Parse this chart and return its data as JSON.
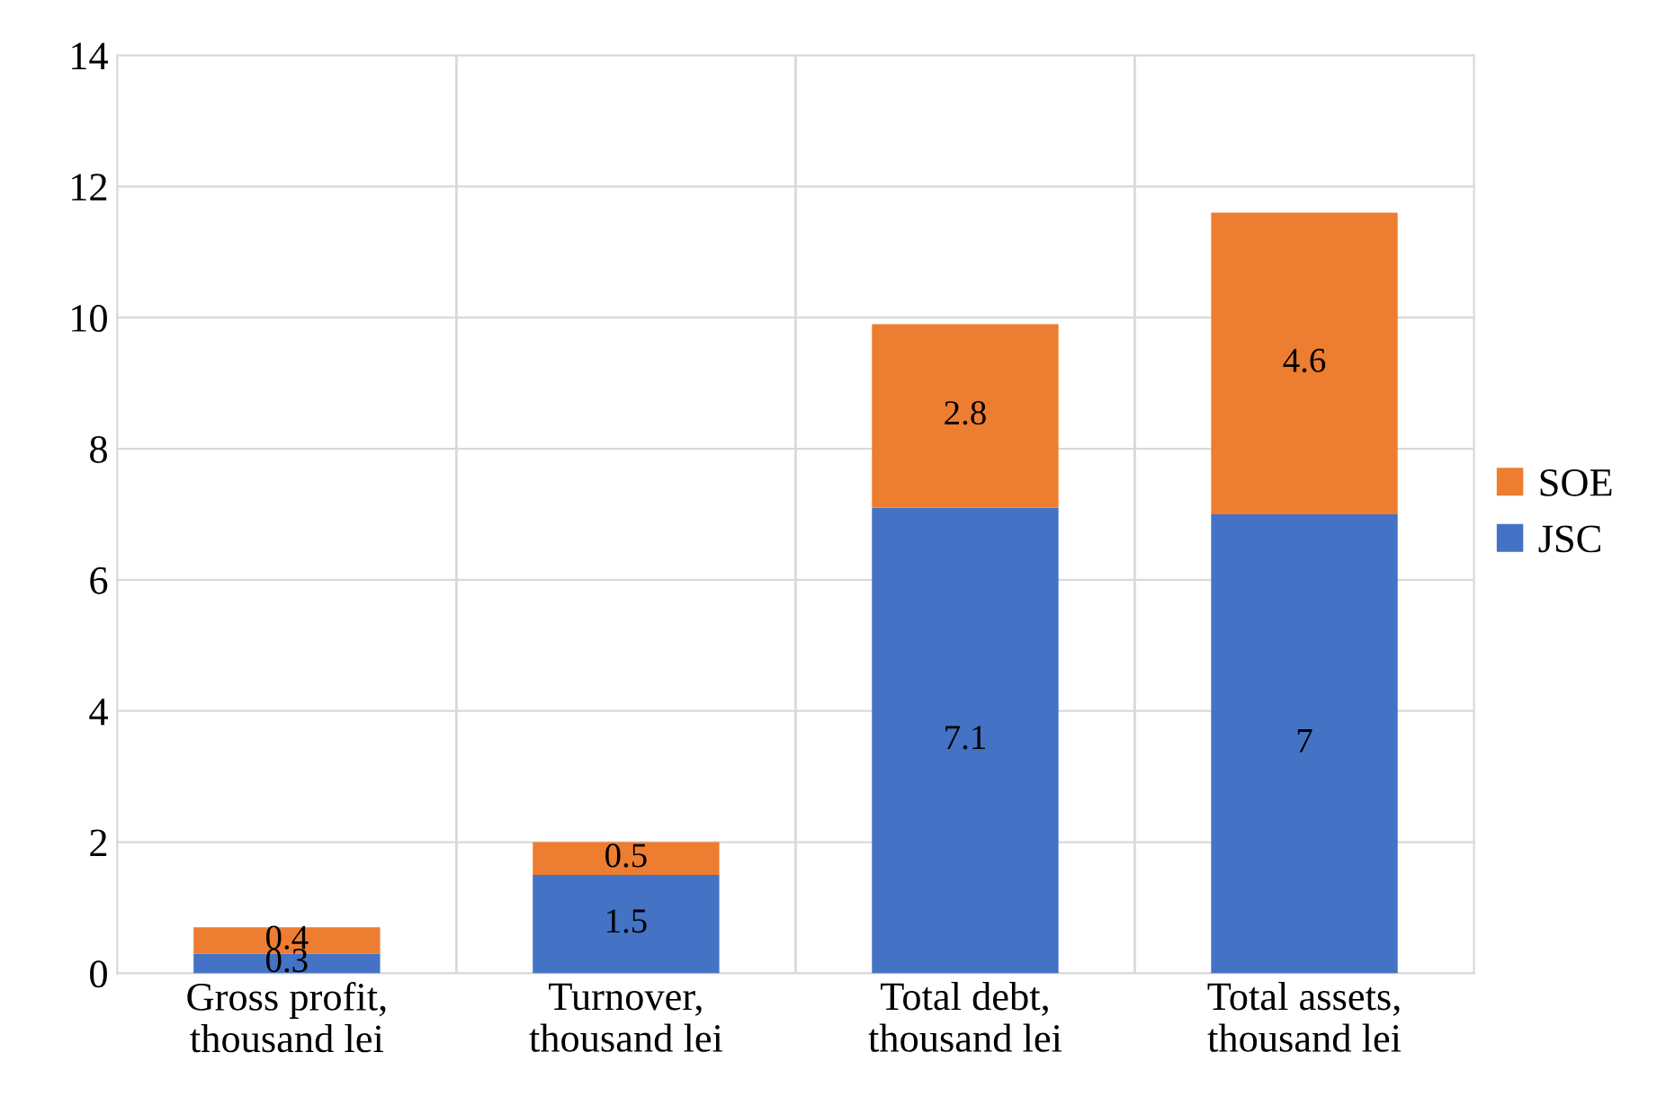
{
  "chart_data": {
    "type": "bar",
    "stacked": true,
    "categories": [
      "Gross profit,\nthousand lei",
      "Turnover,\nthousand lei",
      "Total debt,\nthousand lei",
      "Total assets,\nthousand lei"
    ],
    "series": [
      {
        "name": "JSC",
        "color": "#4472c4",
        "values": [
          0.3,
          1.5,
          7.1,
          7
        ]
      },
      {
        "name": "SOE",
        "color": "#ed7d31",
        "values": [
          0.4,
          0.5,
          2.8,
          4.6
        ]
      }
    ],
    "ylim": [
      0,
      14
    ],
    "yticks": [
      0,
      2,
      4,
      6,
      8,
      10,
      12,
      14
    ],
    "grid": true,
    "legend": "right",
    "data_labels": true
  }
}
